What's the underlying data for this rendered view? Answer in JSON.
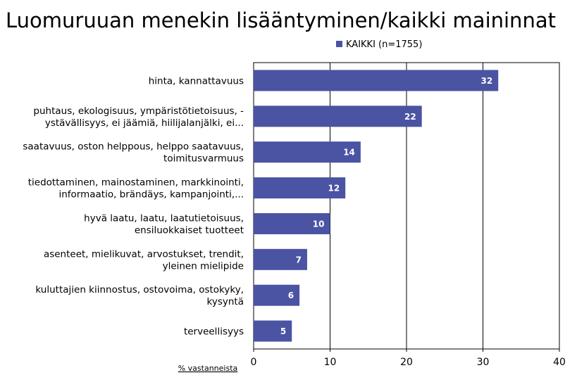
{
  "chart_data": {
    "type": "bar",
    "orientation": "horizontal",
    "title": "Luomuruuan menekin lisääntyminen/kaikki maininnat",
    "xlabel": "% vastanneista",
    "ylabel": "",
    "xlim": [
      0,
      40
    ],
    "xticks": [
      "0",
      "10",
      "20",
      "30",
      "40"
    ],
    "grid": true,
    "legend_position": "top-right",
    "bar_color": "#4b53a3",
    "categories": [
      [
        "hinta,  kannattavuus"
      ],
      [
        "puhtaus, ekologisuus, ympäristötietoisuus, -",
        "ystävällisyys, ei jäämiä, hiilijalanjälki, ei..."
      ],
      [
        "saatavuus, oston helppous, helppo saatavuus,",
        "toimitusvarmuus"
      ],
      [
        "tiedottaminen, mainostaminen, markkinointi,",
        "informaatio, brändäys, kampanjointi,..."
      ],
      [
        "hyvä laatu, laatu, laatutietoisuus,",
        "ensiluokkaiset tuotteet"
      ],
      [
        "asenteet, mielikuvat, arvostukset, trendit,",
        "yleinen mielipide"
      ],
      [
        "kuluttajien kiinnostus, ostovoima, ostokyky,",
        "kysyntä"
      ],
      [
        "terveellisyys"
      ]
    ],
    "series": [
      {
        "name": "KAIKKI (n=1755)",
        "values": [
          32,
          22,
          14,
          12,
          10,
          7,
          6,
          5
        ],
        "labels": [
          "32",
          "22",
          "14",
          "12",
          "10",
          "7",
          "6",
          "5"
        ]
      }
    ]
  }
}
